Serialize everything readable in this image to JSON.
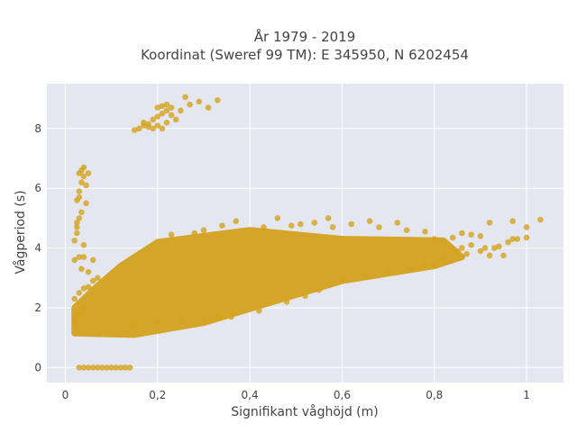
{
  "chart_data": {
    "type": "scatter",
    "title_line1": "År 1979 - 2019",
    "title_line2": "Koordinat (Sweref 99 TM): E 345950, N 6202454",
    "xlabel": "Signifikant våghöjd (m)",
    "ylabel": "Vågperiod (s)",
    "xlim": [
      -0.04,
      1.08
    ],
    "ylim": [
      -0.5,
      9.5
    ],
    "x_ticks": [
      0,
      0.2,
      0.4,
      0.6,
      0.8,
      1
    ],
    "x_tick_labels": [
      "0",
      "0,2",
      "0,4",
      "0,6",
      "0,8",
      "1"
    ],
    "y_ticks": [
      0,
      2,
      4,
      6,
      8
    ],
    "y_tick_labels": [
      "0",
      "2",
      "4",
      "6",
      "8"
    ],
    "grid": true,
    "marker_color": "#D4A21E",
    "plot_bg": "#E5E7F0",
    "dense_band_description_free": true,
    "dense_region_hull": [
      [
        0.02,
        1.15
      ],
      [
        0.15,
        1.1
      ],
      [
        0.3,
        1.5
      ],
      [
        0.45,
        2.2
      ],
      [
        0.6,
        2.9
      ],
      [
        0.8,
        3.4
      ],
      [
        0.86,
        3.7
      ],
      [
        0.82,
        4.25
      ],
      [
        0.6,
        4.3
      ],
      [
        0.4,
        4.6
      ],
      [
        0.2,
        4.2
      ],
      [
        0.12,
        3.4
      ],
      [
        0.06,
        2.6
      ],
      [
        0.02,
        2.0
      ]
    ],
    "points": [
      [
        0.02,
        1.5
      ],
      [
        0.02,
        1.65
      ],
      [
        0.025,
        1.3
      ],
      [
        0.03,
        1.8
      ],
      [
        0.05,
        3.2
      ],
      [
        0.06,
        3.6
      ],
      [
        0.04,
        2.0
      ],
      [
        0.02,
        4.25
      ],
      [
        0.025,
        4.5
      ],
      [
        0.03,
        3.7
      ],
      [
        0.02,
        3.6
      ],
      [
        0.04,
        3.7
      ],
      [
        0.035,
        3.3
      ],
      [
        0.04,
        4.1
      ],
      [
        0.02,
        2.3
      ],
      [
        0.03,
        2.5
      ],
      [
        0.04,
        2.65
      ],
      [
        0.05,
        2.7
      ],
      [
        0.06,
        2.9
      ],
      [
        0.07,
        3.0
      ],
      [
        0.025,
        4.7
      ],
      [
        0.025,
        4.85
      ],
      [
        0.03,
        5.0
      ],
      [
        0.025,
        5.6
      ],
      [
        0.03,
        5.7
      ],
      [
        0.035,
        6.2
      ],
      [
        0.03,
        6.5
      ],
      [
        0.035,
        6.6
      ],
      [
        0.04,
        6.4
      ],
      [
        0.045,
        6.1
      ],
      [
        0.035,
        5.2
      ],
      [
        0.045,
        5.5
      ],
      [
        0.03,
        5.9
      ],
      [
        0.05,
        6.5
      ],
      [
        0.04,
        6.7
      ],
      [
        0.15,
        7.95
      ],
      [
        0.16,
        8.0
      ],
      [
        0.17,
        8.1
      ],
      [
        0.18,
        8.05
      ],
      [
        0.19,
        8.0
      ],
      [
        0.2,
        8.1
      ],
      [
        0.21,
        8.0
      ],
      [
        0.17,
        8.2
      ],
      [
        0.19,
        8.3
      ],
      [
        0.2,
        8.4
      ],
      [
        0.21,
        8.5
      ],
      [
        0.22,
        8.6
      ],
      [
        0.2,
        8.7
      ],
      [
        0.21,
        8.75
      ],
      [
        0.22,
        8.8
      ],
      [
        0.23,
        8.7
      ],
      [
        0.23,
        8.45
      ],
      [
        0.24,
        8.3
      ],
      [
        0.22,
        8.2
      ],
      [
        0.18,
        8.15
      ],
      [
        0.25,
        8.6
      ],
      [
        0.27,
        8.8
      ],
      [
        0.29,
        8.9
      ],
      [
        0.31,
        8.7
      ],
      [
        0.33,
        8.95
      ],
      [
        0.26,
        9.05
      ],
      [
        0.03,
        0.0
      ],
      [
        0.04,
        0.0
      ],
      [
        0.05,
        0.0
      ],
      [
        0.06,
        0.0
      ],
      [
        0.07,
        0.0
      ],
      [
        0.08,
        0.0
      ],
      [
        0.09,
        0.0
      ],
      [
        0.1,
        0.0
      ],
      [
        0.11,
        0.0
      ],
      [
        0.12,
        0.0
      ],
      [
        0.13,
        0.0
      ],
      [
        0.14,
        0.0
      ],
      [
        0.15,
        1.45
      ],
      [
        0.2,
        1.5
      ],
      [
        0.25,
        1.55
      ],
      [
        0.3,
        1.6
      ],
      [
        0.33,
        1.7
      ],
      [
        0.36,
        1.7
      ],
      [
        0.42,
        1.9
      ],
      [
        0.48,
        2.2
      ],
      [
        0.52,
        2.4
      ],
      [
        0.55,
        2.6
      ],
      [
        0.6,
        2.95
      ],
      [
        0.65,
        3.1
      ],
      [
        0.7,
        3.2
      ],
      [
        0.75,
        3.3
      ],
      [
        0.78,
        3.4
      ],
      [
        0.8,
        3.45
      ],
      [
        0.82,
        3.7
      ],
      [
        0.85,
        3.9
      ],
      [
        0.86,
        4.0
      ],
      [
        0.87,
        3.8
      ],
      [
        0.88,
        4.1
      ],
      [
        0.9,
        3.9
      ],
      [
        0.91,
        4.0
      ],
      [
        0.92,
        3.75
      ],
      [
        0.93,
        4.0
      ],
      [
        0.94,
        4.05
      ],
      [
        0.95,
        3.75
      ],
      [
        0.96,
        4.2
      ],
      [
        0.97,
        4.3
      ],
      [
        0.98,
        4.3
      ],
      [
        0.86,
        4.5
      ],
      [
        0.88,
        4.45
      ],
      [
        0.84,
        4.35
      ],
      [
        0.9,
        4.4
      ],
      [
        0.82,
        4.2
      ],
      [
        0.8,
        4.3
      ],
      [
        0.92,
        4.85
      ],
      [
        0.97,
        4.9
      ],
      [
        1.03,
        4.95
      ],
      [
        1.0,
        4.7
      ],
      [
        1.0,
        4.35
      ],
      [
        0.37,
        4.9
      ],
      [
        0.46,
        5.0
      ],
      [
        0.54,
        4.85
      ],
      [
        0.57,
        5.0
      ],
      [
        0.66,
        4.9
      ],
      [
        0.72,
        4.85
      ],
      [
        0.58,
        4.7
      ],
      [
        0.49,
        4.75
      ],
      [
        0.43,
        4.7
      ],
      [
        0.51,
        4.8
      ],
      [
        0.28,
        4.5
      ],
      [
        0.23,
        4.45
      ],
      [
        0.34,
        4.75
      ],
      [
        0.3,
        4.6
      ],
      [
        0.62,
        4.8
      ],
      [
        0.68,
        4.7
      ],
      [
        0.74,
        4.6
      ],
      [
        0.78,
        4.55
      ]
    ]
  }
}
